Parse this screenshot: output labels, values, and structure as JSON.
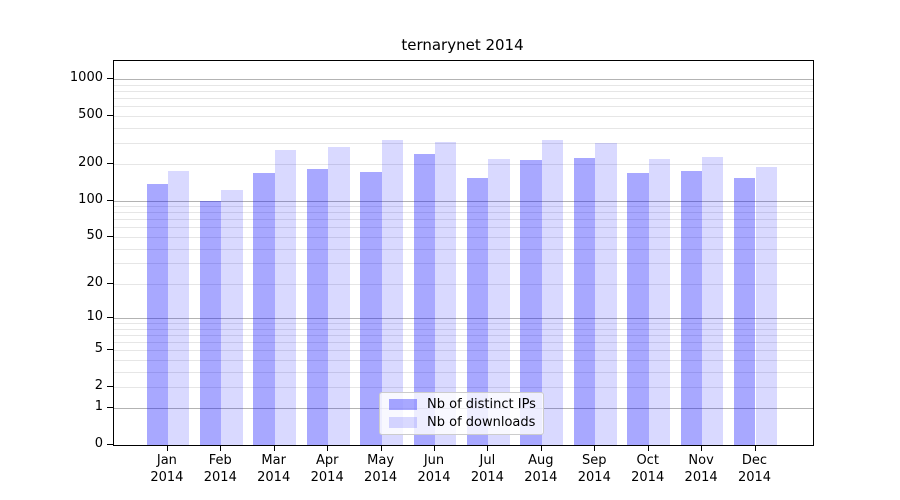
{
  "title": "ternarynet 2014",
  "chart_data": {
    "type": "bar",
    "title": "ternarynet 2014",
    "categories": [
      "Jan 2014",
      "Feb 2014",
      "Mar 2014",
      "Apr 2014",
      "May 2014",
      "Jun 2014",
      "Jul 2014",
      "Aug 2014",
      "Sep 2014",
      "Oct 2014",
      "Nov 2014",
      "Dec 2014"
    ],
    "x_tick_line1": [
      "Jan",
      "Feb",
      "Mar",
      "Apr",
      "May",
      "Jun",
      "Jul",
      "Aug",
      "Sep",
      "Oct",
      "Nov",
      "Dec"
    ],
    "x_tick_line2": "2014",
    "series": [
      {
        "name": "Nb of distinct IPs",
        "color": "rgba(0,0,255,0.34)",
        "hex": "#aaaaff",
        "values": [
          137,
          100,
          170,
          183,
          173,
          242,
          153,
          218,
          224,
          170,
          176,
          153
        ]
      },
      {
        "name": "Nb of downloads",
        "color": "rgba(0,0,255,0.15)",
        "hex": "#d9d9ff",
        "values": [
          176,
          123,
          262,
          277,
          316,
          308,
          220,
          316,
          299,
          220,
          228,
          190
        ]
      }
    ],
    "yscale": "log1p",
    "ylim": [
      0,
      1415
    ],
    "yticks": [
      0,
      1,
      2,
      5,
      10,
      20,
      50,
      100,
      200,
      500,
      1000
    ],
    "y_major_gridlines": [
      1,
      10,
      100,
      1000
    ],
    "y_minor_gridlines": [
      2,
      3,
      4,
      5,
      6,
      7,
      8,
      9,
      20,
      30,
      40,
      50,
      60,
      70,
      80,
      90,
      200,
      300,
      400,
      500,
      600,
      700,
      800,
      900
    ],
    "grid": true,
    "legend_position": "inside-bottom-center"
  },
  "colors": {
    "major_grid": "#b3b3b3",
    "minor_grid": "#e6e6e6",
    "spine": "#000000",
    "background": "#ffffff"
  },
  "legend": {
    "items": [
      {
        "label": "Nb of distinct IPs",
        "swatch_color": "rgba(0,0,255,0.34)"
      },
      {
        "label": "Nb of downloads",
        "swatch_color": "rgba(0,0,255,0.15)"
      }
    ]
  }
}
